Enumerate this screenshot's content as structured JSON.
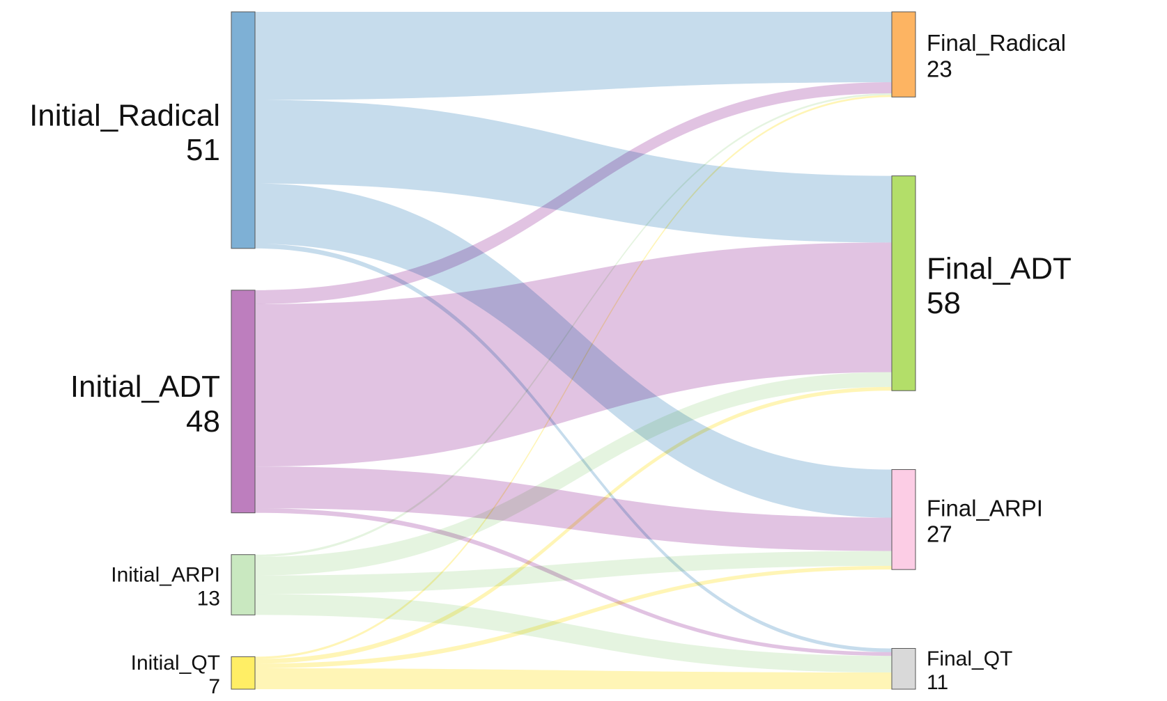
{
  "chart_data": {
    "type": "sankey",
    "unit_max": 119,
    "sources": [
      {
        "id": "Initial_Radical",
        "label": "Initial_Radical",
        "value": 51,
        "color": "#7eb0d5",
        "flow_color": "#b9d4e8"
      },
      {
        "id": "Initial_ADT",
        "label": "Initial_ADT",
        "value": 48,
        "color": "#bd7ebe",
        "flow_color": "#dbb6dc"
      },
      {
        "id": "Initial_ARPI",
        "label": "Initial_ARPI",
        "value": 13,
        "color": "#c9e8c0",
        "flow_color": "#dff1d9"
      },
      {
        "id": "Initial_QT",
        "label": "Initial_QT",
        "value": 7,
        "color": "#ffee65",
        "flow_color": "#fff3a6"
      }
    ],
    "targets": [
      {
        "id": "Final_Radical",
        "label": "Final_Radical",
        "value": 23,
        "color": "#fdb462"
      },
      {
        "id": "Final_ADT",
        "label": "Final_ADT",
        "value": 58,
        "color": "#b3de69"
      },
      {
        "id": "Final_ARPI",
        "label": "Final_ARPI",
        "value": 27,
        "color": "#fccde5"
      },
      {
        "id": "Final_QT",
        "label": "Final_QT",
        "value": 11,
        "color": "#d9d9d9"
      }
    ],
    "links": [
      {
        "source": "Initial_Radical",
        "target": "Final_Radical",
        "value": 19
      },
      {
        "source": "Initial_Radical",
        "target": "Final_ADT",
        "value": 18
      },
      {
        "source": "Initial_Radical",
        "target": "Final_ARPI",
        "value": 13
      },
      {
        "source": "Initial_Radical",
        "target": "Final_QT",
        "value": 1
      },
      {
        "source": "Initial_ADT",
        "target": "Final_Radical",
        "value": 3
      },
      {
        "source": "Initial_ADT",
        "target": "Final_ADT",
        "value": 35
      },
      {
        "source": "Initial_ADT",
        "target": "Final_ARPI",
        "value": 9
      },
      {
        "source": "Initial_ADT",
        "target": "Final_QT",
        "value": 1
      },
      {
        "source": "Initial_ARPI",
        "target": "Final_Radical",
        "value": 0.5
      },
      {
        "source": "Initial_ARPI",
        "target": "Final_ADT",
        "value": 4
      },
      {
        "source": "Initial_ARPI",
        "target": "Final_ARPI",
        "value": 4
      },
      {
        "source": "Initial_ARPI",
        "target": "Final_QT",
        "value": 4.5
      },
      {
        "source": "Initial_QT",
        "target": "Final_Radical",
        "value": 0.5
      },
      {
        "source": "Initial_QT",
        "target": "Final_ADT",
        "value": 1
      },
      {
        "source": "Initial_QT",
        "target": "Final_ARPI",
        "value": 1
      },
      {
        "source": "Initial_QT",
        "target": "Final_QT",
        "value": 4.5
      }
    ]
  }
}
